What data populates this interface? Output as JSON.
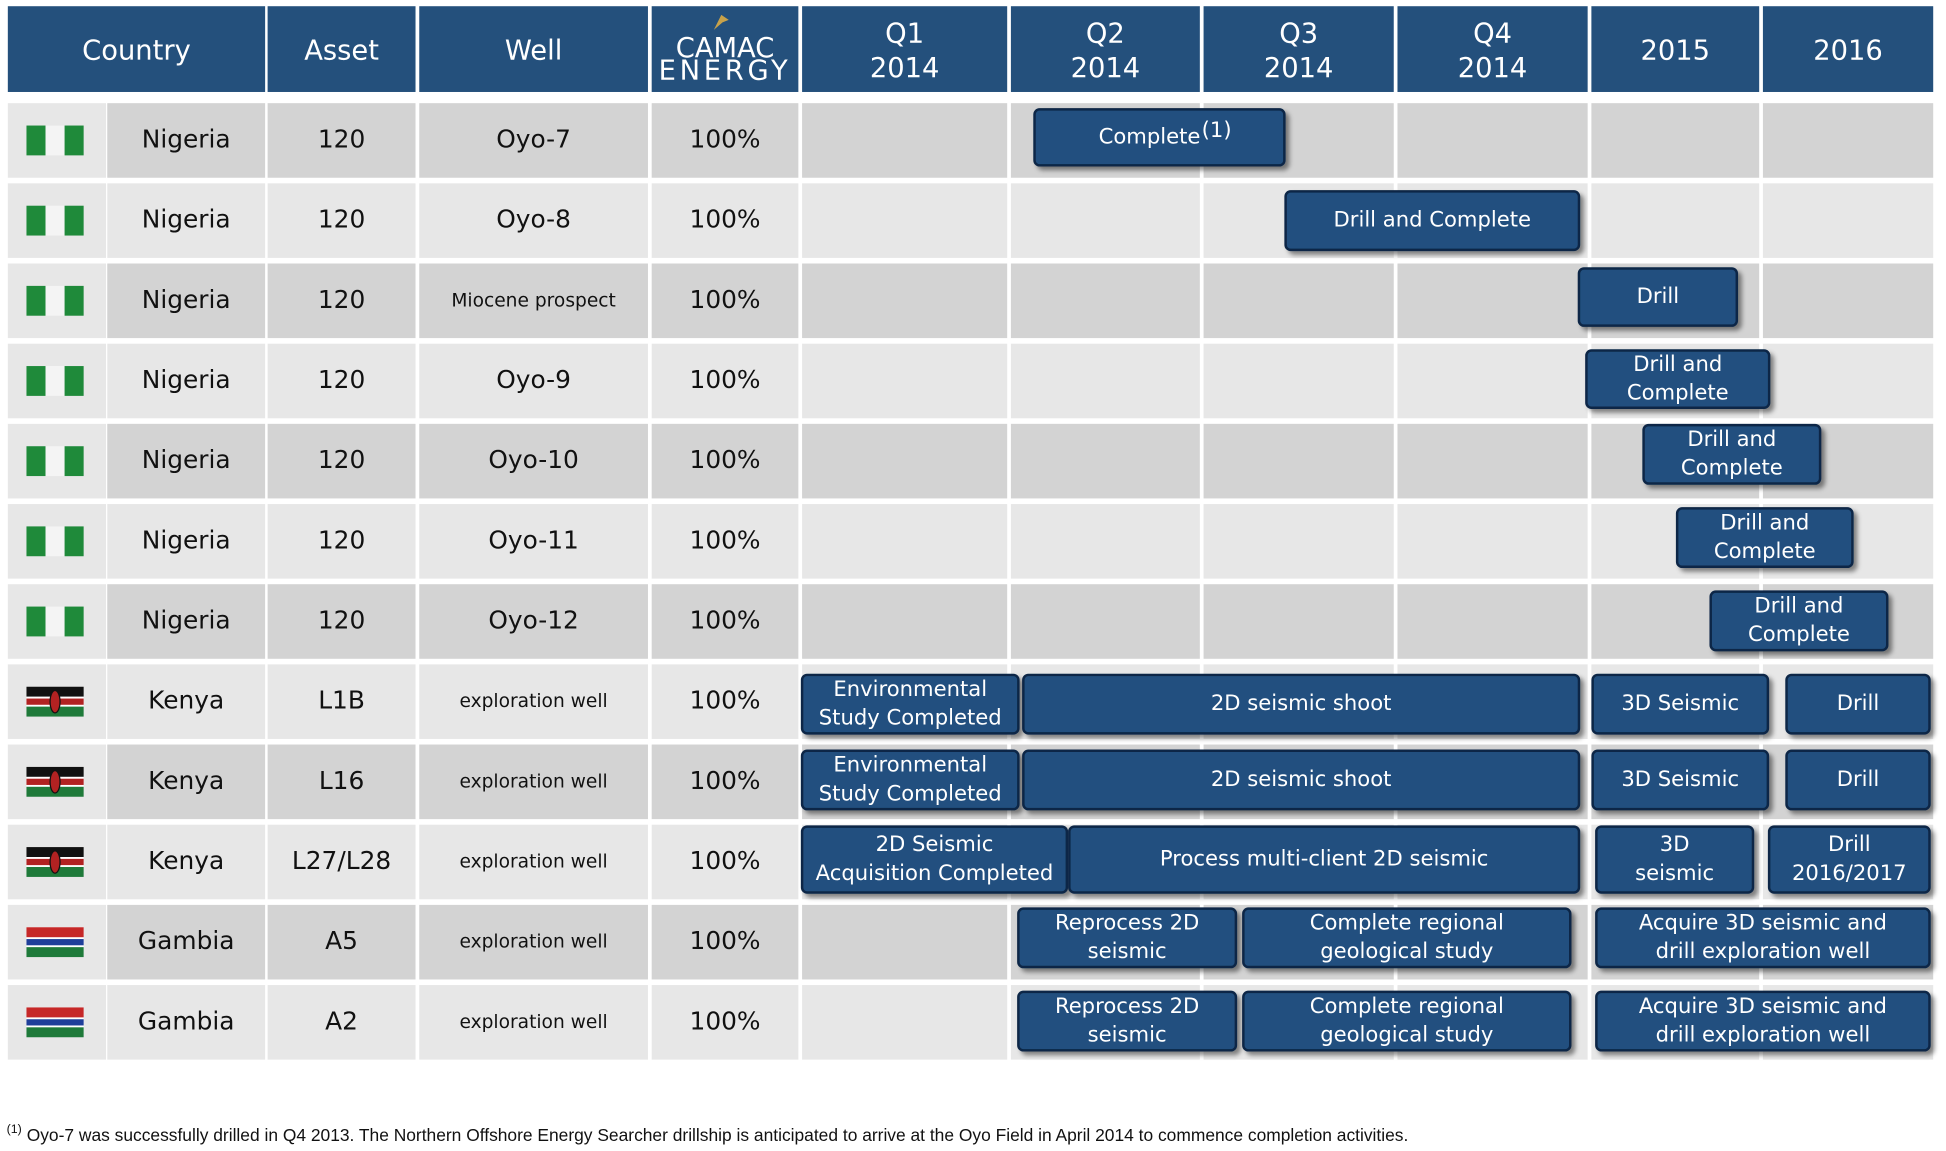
{
  "header": {
    "columns": [
      {
        "lines": [
          "Country"
        ]
      },
      {
        "lines": [
          "Asset"
        ]
      },
      {
        "lines": [
          "Well"
        ]
      },
      {
        "lines": [
          "CAMAC",
          "ENERGY"
        ]
      },
      {
        "lines": [
          "Q1",
          "2014"
        ]
      },
      {
        "lines": [
          "Q2",
          "2014"
        ]
      },
      {
        "lines": [
          "Q3",
          "2014"
        ]
      },
      {
        "lines": [
          "Q4",
          "2014"
        ]
      },
      {
        "lines": [
          "2015"
        ]
      },
      {
        "lines": [
          "2016"
        ]
      }
    ]
  },
  "rows": [
    {
      "country": "Nigeria",
      "asset": "120",
      "well": "Oyo-7",
      "interest": "100%",
      "bars": [
        {
          "lines": [
            "Complete"
          ],
          "note": "(1)"
        }
      ]
    },
    {
      "country": "Nigeria",
      "asset": "120",
      "well": "Oyo-8",
      "interest": "100%",
      "bars": [
        {
          "lines": [
            "Drill and Complete"
          ]
        }
      ]
    },
    {
      "country": "Nigeria",
      "asset": "120",
      "well": "Miocene prospect",
      "interest": "100%",
      "bars": [
        {
          "lines": [
            "Drill"
          ]
        }
      ]
    },
    {
      "country": "Nigeria",
      "asset": "120",
      "well": "Oyo-9",
      "interest": "100%",
      "bars": [
        {
          "lines": [
            "Drill and",
            "Complete"
          ]
        }
      ]
    },
    {
      "country": "Nigeria",
      "asset": "120",
      "well": "Oyo-10",
      "interest": "100%",
      "bars": [
        {
          "lines": [
            "Drill and",
            "Complete"
          ]
        }
      ]
    },
    {
      "country": "Nigeria",
      "asset": "120",
      "well": "Oyo-11",
      "interest": "100%",
      "bars": [
        {
          "lines": [
            "Drill and",
            "Complete"
          ]
        }
      ]
    },
    {
      "country": "Nigeria",
      "asset": "120",
      "well": "Oyo-12",
      "interest": "100%",
      "bars": [
        {
          "lines": [
            "Drill and",
            "Complete"
          ]
        }
      ]
    },
    {
      "country": "Kenya",
      "asset": "L1B",
      "well": "exploration well",
      "interest": "100%",
      "bars": [
        {
          "lines": [
            "Environmental",
            "Study Completed"
          ]
        },
        {
          "lines": [
            "2D seismic shoot"
          ]
        },
        {
          "lines": [
            "3D Seismic"
          ]
        },
        {
          "lines": [
            "Drill"
          ]
        }
      ]
    },
    {
      "country": "Kenya",
      "asset": "L16",
      "well": "exploration well",
      "interest": "100%",
      "bars": [
        {
          "lines": [
            "Environmental",
            "Study Completed"
          ]
        },
        {
          "lines": [
            "2D seismic shoot"
          ]
        },
        {
          "lines": [
            "3D Seismic"
          ]
        },
        {
          "lines": [
            "Drill"
          ]
        }
      ]
    },
    {
      "country": "Kenya",
      "asset": "L27/L28",
      "well": "exploration well",
      "interest": "100%",
      "bars": [
        {
          "lines": [
            "2D Seismic",
            "Acquisition Completed"
          ]
        },
        {
          "lines": [
            "Process multi-client 2D seismic"
          ]
        },
        {
          "lines": [
            "3D",
            "seismic"
          ]
        },
        {
          "lines": [
            "Drill",
            "2016/2017"
          ]
        }
      ]
    },
    {
      "country": "Gambia",
      "asset": "A5",
      "well": "exploration well",
      "interest": "100%",
      "bars": [
        {
          "lines": [
            "Reprocess 2D",
            "seismic"
          ]
        },
        {
          "lines": [
            "Complete regional",
            "geological study"
          ]
        },
        {
          "lines": [
            "Acquire 3D seismic and",
            "drill exploration well"
          ]
        }
      ]
    },
    {
      "country": "Gambia",
      "asset": "A2",
      "well": "exploration well",
      "interest": "100%",
      "bars": [
        {
          "lines": [
            "Reprocess 2D",
            "seismic"
          ]
        },
        {
          "lines": [
            "Complete regional",
            "geological study"
          ]
        },
        {
          "lines": [
            "Acquire 3D seismic and",
            "drill exploration well"
          ]
        }
      ]
    }
  ],
  "footnote": {
    "marker": "(1)",
    "text": "Oyo-7 was successfully drilled in Q4 2013.  The Northern Offshore Energy Searcher drillship is anticipated to arrive at the Oyo Field in April 2014 to commence completion activities."
  }
}
